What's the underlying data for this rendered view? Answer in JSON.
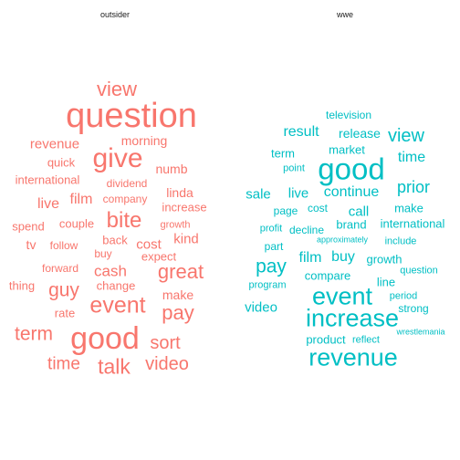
{
  "colors": {
    "outsider": "#F8766D",
    "wwe": "#00BFC4",
    "background": "#FFFFFF",
    "title_text": "#1A1A1A"
  },
  "panels": [
    {
      "title": "outsider",
      "words": [
        {
          "text": "view"
        },
        {
          "text": "question"
        },
        {
          "text": "morning"
        },
        {
          "text": "revenue"
        },
        {
          "text": "give"
        },
        {
          "text": "quick"
        },
        {
          "text": "numb"
        },
        {
          "text": "international"
        },
        {
          "text": "dividend"
        },
        {
          "text": "film"
        },
        {
          "text": "company"
        },
        {
          "text": "linda"
        },
        {
          "text": "live"
        },
        {
          "text": "increase"
        },
        {
          "text": "bite"
        },
        {
          "text": "spend"
        },
        {
          "text": "couple"
        },
        {
          "text": "growth"
        },
        {
          "text": "kind"
        },
        {
          "text": "tv"
        },
        {
          "text": "follow"
        },
        {
          "text": "back"
        },
        {
          "text": "cost"
        },
        {
          "text": "buy"
        },
        {
          "text": "expect"
        },
        {
          "text": "forward"
        },
        {
          "text": "cash"
        },
        {
          "text": "great"
        },
        {
          "text": "thing"
        },
        {
          "text": "guy"
        },
        {
          "text": "change"
        },
        {
          "text": "make"
        },
        {
          "text": "rate"
        },
        {
          "text": "event"
        },
        {
          "text": "pay"
        },
        {
          "text": "term"
        },
        {
          "text": "good"
        },
        {
          "text": "sort"
        },
        {
          "text": "time"
        },
        {
          "text": "talk"
        },
        {
          "text": "video"
        }
      ]
    },
    {
      "title": "wwe",
      "words": [
        {
          "text": "television"
        },
        {
          "text": "result"
        },
        {
          "text": "release"
        },
        {
          "text": "view"
        },
        {
          "text": "term"
        },
        {
          "text": "market"
        },
        {
          "text": "time"
        },
        {
          "text": "good"
        },
        {
          "text": "point"
        },
        {
          "text": "prior"
        },
        {
          "text": "sale"
        },
        {
          "text": "live"
        },
        {
          "text": "continue"
        },
        {
          "text": "page"
        },
        {
          "text": "cost"
        },
        {
          "text": "call"
        },
        {
          "text": "make"
        },
        {
          "text": "profit"
        },
        {
          "text": "decline"
        },
        {
          "text": "brand"
        },
        {
          "text": "international"
        },
        {
          "text": "part"
        },
        {
          "text": "approximately"
        },
        {
          "text": "include"
        },
        {
          "text": "film"
        },
        {
          "text": "buy"
        },
        {
          "text": "growth"
        },
        {
          "text": "pay"
        },
        {
          "text": "compare"
        },
        {
          "text": "question"
        },
        {
          "text": "program"
        },
        {
          "text": "line"
        },
        {
          "text": "event"
        },
        {
          "text": "period"
        },
        {
          "text": "video"
        },
        {
          "text": "strong"
        },
        {
          "text": "increase"
        },
        {
          "text": "product"
        },
        {
          "text": "reflect"
        },
        {
          "text": "wrestlemania"
        },
        {
          "text": "revenue"
        }
      ]
    }
  ]
}
